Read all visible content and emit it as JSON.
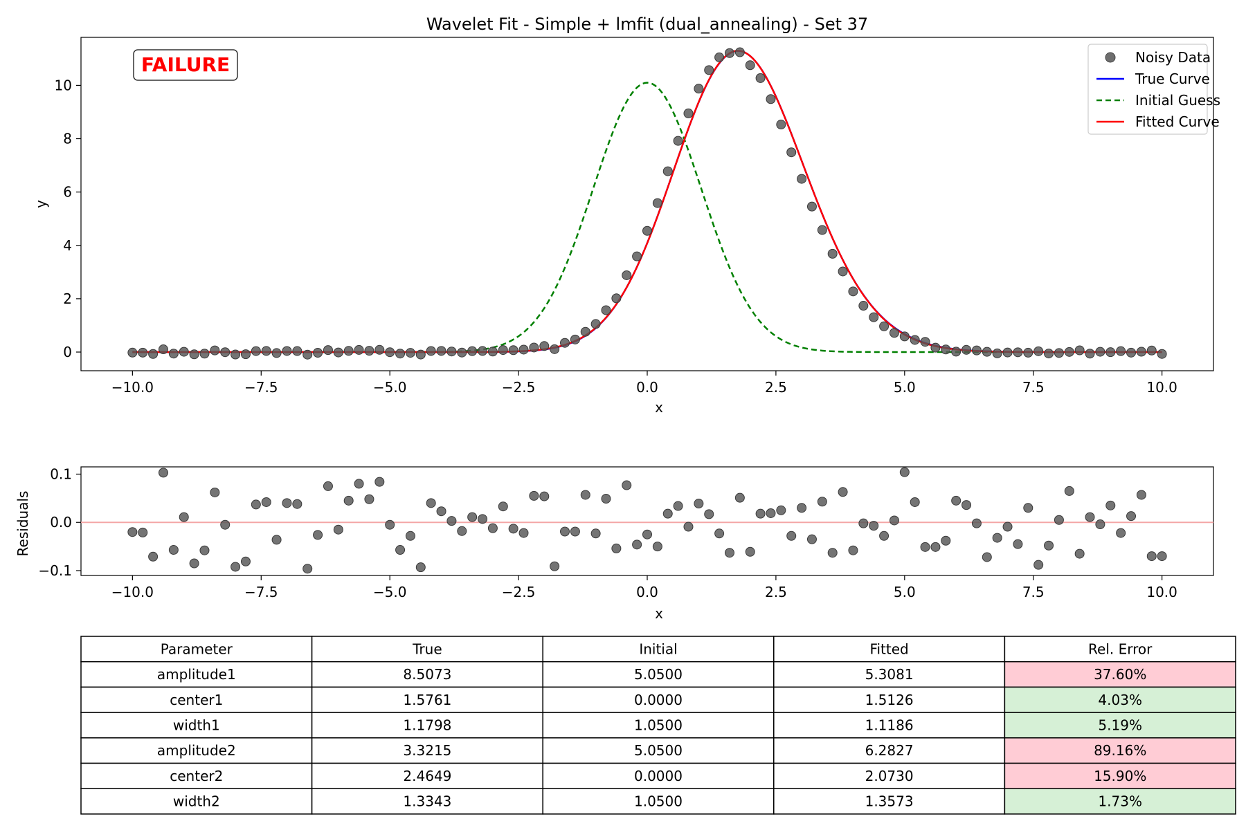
{
  "chart_data": [
    {
      "type": "line",
      "title": "Wavelet Fit - Simple + lmfit (dual_annealing) - Set 37",
      "xlabel": "x",
      "ylabel": "y",
      "xlim": [
        -11,
        11
      ],
      "ylim": [
        -0.7,
        11.8
      ],
      "x_ticks": [
        -10.0,
        -7.5,
        -5.0,
        -2.5,
        0.0,
        2.5,
        5.0,
        7.5,
        10.0
      ],
      "x_tick_labels": [
        "−10.0",
        "−7.5",
        "−5.0",
        "−2.5",
        "0.0",
        "2.5",
        "5.0",
        "7.5",
        "10.0"
      ],
      "y_ticks": [
        0,
        2,
        4,
        6,
        8,
        10
      ],
      "y_tick_labels": [
        "0",
        "2",
        "4",
        "6",
        "8",
        "10"
      ],
      "grid": false,
      "legend_position": "top-right",
      "annotation": "FAILURE",
      "series": [
        {
          "name": "Noisy Data",
          "kind": "scatter",
          "color": "#555555",
          "x": [
            -10.0,
            -9.8,
            -9.6,
            -9.4,
            -9.2,
            -9.0,
            -8.8,
            -8.6,
            -8.4,
            -8.2,
            -8.0,
            -7.8,
            -7.6,
            -7.4,
            -7.2,
            -7.0,
            -6.8,
            -6.6,
            -6.4,
            -6.2,
            -6.0,
            -5.8,
            -5.6,
            -5.4,
            -5.2,
            -5.0,
            -4.8,
            -4.6,
            -4.4,
            -4.2,
            -4.0,
            -3.8,
            -3.6,
            -3.4,
            -3.2,
            -3.0,
            -2.8,
            -2.6,
            -2.4,
            -2.2,
            -2.0,
            -1.8,
            -1.6,
            -1.4,
            -1.2,
            -1.0,
            -0.8,
            -0.6,
            -0.4,
            -0.2,
            0.0,
            0.2,
            0.4,
            0.6,
            0.8,
            1.0,
            1.2,
            1.4,
            1.6,
            1.8,
            2.0,
            2.2,
            2.4,
            2.6,
            2.8,
            3.0,
            3.2,
            3.4,
            3.6,
            3.8,
            4.0,
            4.2,
            4.4,
            4.6,
            4.8,
            5.0,
            5.2,
            5.4,
            5.6,
            5.8,
            6.0,
            6.2,
            6.4,
            6.6,
            6.8,
            7.0,
            7.2,
            7.4,
            7.6,
            7.8,
            8.0,
            8.2,
            8.4,
            8.6,
            8.8,
            9.0,
            9.2,
            9.4,
            9.6,
            9.8,
            10.0
          ],
          "y": [
            -0.02,
            -0.021,
            -0.071,
            0.103,
            -0.057,
            0.011,
            -0.085,
            -0.058,
            0.062,
            -0.005,
            -0.092,
            -0.081,
            0.037,
            0.042,
            -0.036,
            0.04,
            0.038,
            -0.096,
            -0.026,
            0.075,
            -0.015,
            0.045,
            0.08,
            0.048,
            0.084,
            -0.005,
            -0.057,
            -0.028,
            -0.093,
            0.04,
            0.043,
            0.021,
            -0.018,
            0.036,
            0.041,
            0.019,
            0.076,
            0.071,
            0.092,
            0.17,
            0.226,
            0.108,
            0.345,
            0.471,
            0.76,
            1.053,
            1.57,
            2.015,
            2.88,
            3.588,
            4.545,
            5.587,
            6.78,
            7.92,
            8.95,
            9.877,
            10.572,
            11.05,
            11.21,
            11.242,
            10.755,
            10.273,
            9.485,
            8.531,
            7.489,
            6.494,
            5.456,
            4.577,
            3.686,
            3.022,
            2.274,
            1.737,
            1.306,
            0.965,
            0.72,
            0.587,
            0.455,
            0.384,
            0.166,
            0.096,
            0.015,
            0.083,
            0.062,
            0.01,
            -0.05,
            -0.015,
            -0.009,
            -0.023,
            0.03,
            -0.054,
            -0.034,
            0.005,
            0.065,
            -0.058,
            0.011,
            -0.004,
            0.035,
            -0.022,
            0.013,
            0.057,
            -0.07
          ]
        },
        {
          "name": "True Curve",
          "kind": "line",
          "color": "#0000ff",
          "style": "solid"
        },
        {
          "name": "Initial Guess",
          "kind": "line",
          "color": "#008000",
          "style": "dashed"
        },
        {
          "name": "Fitted Curve",
          "kind": "line",
          "color": "#ff0000",
          "style": "solid"
        }
      ]
    },
    {
      "type": "scatter",
      "title": "",
      "xlabel": "x",
      "ylabel": "Residuals",
      "xlim": [
        -11,
        11
      ],
      "ylim": [
        -0.11,
        0.115
      ],
      "x_ticks": [
        -10.0,
        -7.5,
        -5.0,
        -2.5,
        0.0,
        2.5,
        5.0,
        7.5,
        10.0
      ],
      "x_tick_labels": [
        "−10.0",
        "−7.5",
        "−5.0",
        "−2.5",
        "0.0",
        "2.5",
        "5.0",
        "7.5",
        "10.0"
      ],
      "y_ticks": [
        -0.1,
        0.0,
        0.1
      ],
      "y_tick_labels": [
        "−0.1",
        "0.0",
        "0.1"
      ],
      "grid": false,
      "reference_line_y": 0.0,
      "reference_line_color": "#f4a6a6",
      "series": [
        {
          "color": "#555555",
          "x": [
            -10.0,
            -9.8,
            -9.6,
            -9.4,
            -9.2,
            -9.0,
            -8.8,
            -8.6,
            -8.4,
            -8.2,
            -8.0,
            -7.8,
            -7.6,
            -7.4,
            -7.2,
            -7.0,
            -6.8,
            -6.6,
            -6.4,
            -6.2,
            -6.0,
            -5.8,
            -5.6,
            -5.4,
            -5.2,
            -5.0,
            -4.8,
            -4.6,
            -4.4,
            -4.2,
            -4.0,
            -3.8,
            -3.6,
            -3.4,
            -3.2,
            -3.0,
            -2.8,
            -2.6,
            -2.4,
            -2.2,
            -2.0,
            -1.8,
            -1.6,
            -1.4,
            -1.2,
            -1.0,
            -0.8,
            -0.6,
            -0.4,
            -0.2,
            0.0,
            0.2,
            0.4,
            0.6,
            0.8,
            1.0,
            1.2,
            1.4,
            1.6,
            1.8,
            2.0,
            2.2,
            2.4,
            2.6,
            2.8,
            3.0,
            3.2,
            3.4,
            3.6,
            3.8,
            4.0,
            4.2,
            4.4,
            4.6,
            4.8,
            5.0,
            5.2,
            5.4,
            5.6,
            5.8,
            6.0,
            6.2,
            6.4,
            6.6,
            6.8,
            7.0,
            7.2,
            7.4,
            7.6,
            7.8,
            8.0,
            8.2,
            8.4,
            8.6,
            8.8,
            9.0,
            9.2,
            9.4,
            9.6,
            9.8,
            10.0
          ],
          "y": [
            -0.02,
            -0.021,
            -0.071,
            0.103,
            -0.057,
            0.011,
            -0.085,
            -0.058,
            0.062,
            -0.005,
            -0.092,
            -0.081,
            0.037,
            0.042,
            -0.036,
            0.04,
            0.038,
            -0.096,
            -0.026,
            0.075,
            -0.015,
            0.045,
            0.08,
            0.048,
            0.084,
            -0.005,
            -0.057,
            -0.028,
            -0.093,
            0.04,
            0.023,
            0.003,
            -0.018,
            0.011,
            0.007,
            -0.012,
            0.033,
            -0.013,
            -0.022,
            0.055,
            0.054,
            -0.091,
            -0.019,
            -0.019,
            0.057,
            -0.023,
            0.049,
            -0.054,
            0.077,
            -0.046,
            -0.025,
            -0.05,
            0.018,
            0.034,
            -0.009,
            0.039,
            0.017,
            -0.023,
            -0.063,
            0.051,
            -0.061,
            0.018,
            0.019,
            0.025,
            -0.028,
            0.03,
            -0.035,
            0.043,
            -0.063,
            0.063,
            -0.058,
            -0.002,
            -0.007,
            -0.028,
            0.004,
            0.104,
            0.042,
            -0.051,
            -0.051,
            -0.038,
            0.045,
            0.036,
            -0.002,
            -0.072,
            -0.032,
            -0.009,
            -0.045,
            0.03,
            -0.088,
            -0.048,
            0.005,
            0.065,
            -0.065,
            0.011,
            -0.004,
            0.035,
            -0.022,
            0.013,
            0.057,
            -0.07,
            -0.07
          ]
        }
      ]
    },
    {
      "type": "table",
      "columns": [
        "Parameter",
        "True",
        "Initial",
        "Fitted",
        "Rel. Error"
      ],
      "rows": [
        [
          "amplitude1",
          "8.5073",
          "5.0500",
          "5.3081",
          "37.60%"
        ],
        [
          "center1",
          "1.5761",
          "0.0000",
          "1.5126",
          "4.03%"
        ],
        [
          "width1",
          "1.1798",
          "1.0500",
          "1.1186",
          "5.19%"
        ],
        [
          "amplitude2",
          "3.3215",
          "5.0500",
          "6.2827",
          "89.16%"
        ],
        [
          "center2",
          "2.4649",
          "0.0000",
          "2.0730",
          "15.90%"
        ],
        [
          "width2",
          "1.3343",
          "1.0500",
          "1.3573",
          "1.73%"
        ]
      ],
      "error_cell_colors": [
        "#ffccd5",
        "#d6f0d6",
        "#d6f0d6",
        "#ffccd5",
        "#ffccd5",
        "#d6f0d6"
      ]
    }
  ],
  "colors": {
    "fail": "#ffccd5",
    "pass": "#d6f0d6",
    "badge": "#ff0000",
    "marker": "#555555"
  }
}
